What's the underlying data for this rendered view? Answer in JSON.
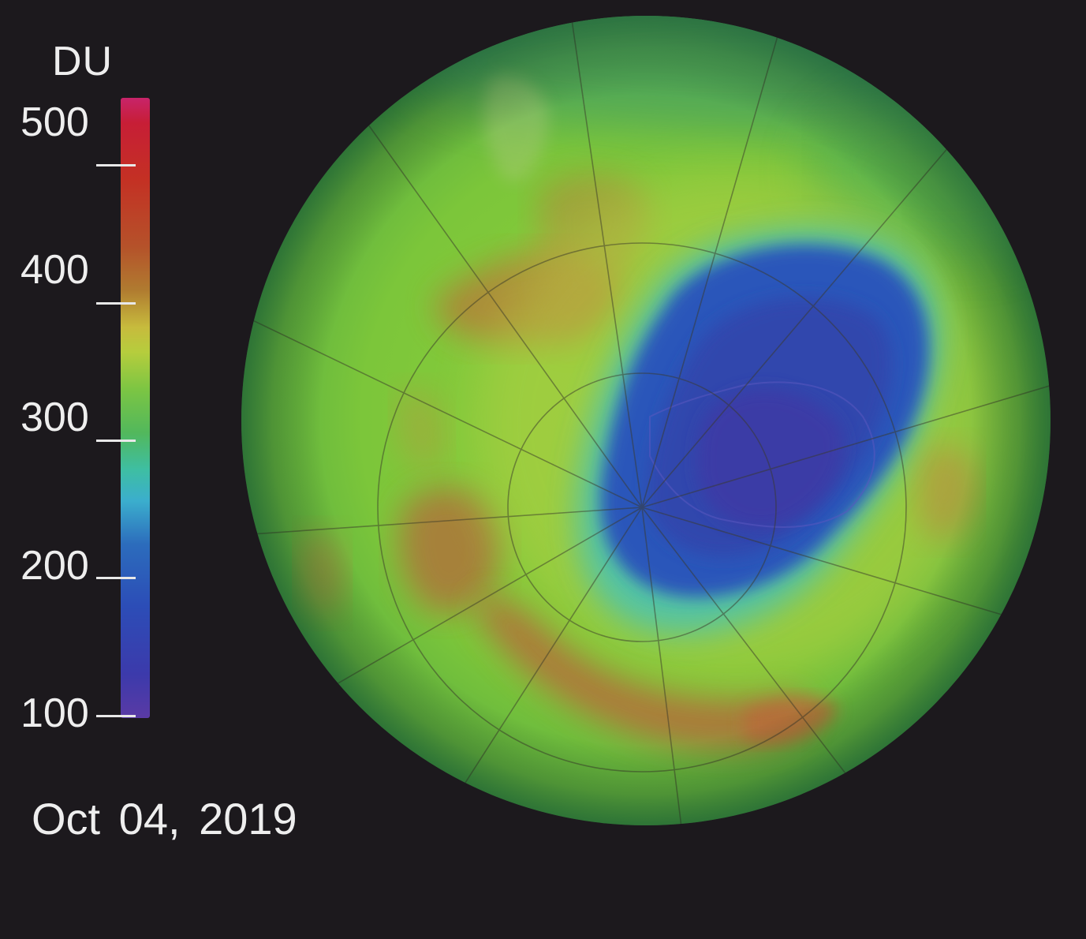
{
  "legend": {
    "unit": "DU",
    "ticks": [
      {
        "label": "500",
        "value": 500
      },
      {
        "label": "400",
        "value": 400
      },
      {
        "label": "300",
        "value": 300
      },
      {
        "label": "200",
        "value": 200
      },
      {
        "label": "100",
        "value": 100
      }
    ],
    "colors": {
      "high": "#c8246a",
      "mid": "#7cc543",
      "low": "#5a3aa5"
    }
  },
  "date": "Oct 04, 2019",
  "map": {
    "projection": "orthographic south polar view",
    "ozone_hole_color": "#2c4db7",
    "background_color": "#1c191d"
  }
}
